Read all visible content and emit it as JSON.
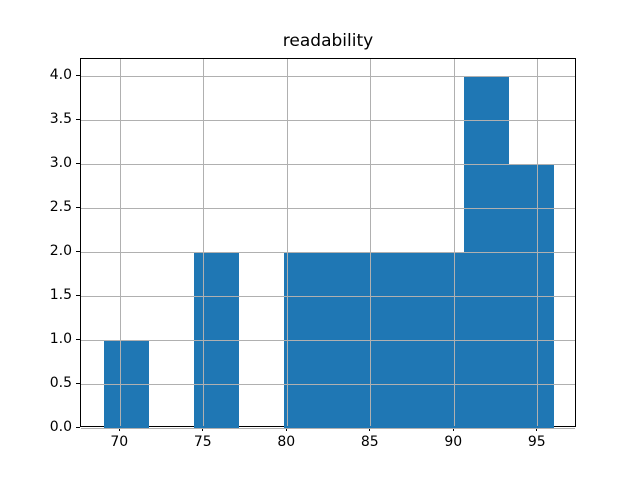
{
  "chart_data": {
    "type": "bar",
    "subtype": "histogram",
    "title": "readability",
    "xlabel": "",
    "ylabel": "",
    "xlim": [
      67.65,
      97.35
    ],
    "ylim": [
      0,
      4.2
    ],
    "xticks": [
      {
        "value": 70,
        "label": "70"
      },
      {
        "value": 75,
        "label": "75"
      },
      {
        "value": 80,
        "label": "80"
      },
      {
        "value": 85,
        "label": "85"
      },
      {
        "value": 90,
        "label": "90"
      },
      {
        "value": 95,
        "label": "95"
      }
    ],
    "yticks": [
      {
        "value": 0.0,
        "label": "0.0"
      },
      {
        "value": 0.5,
        "label": "0.5"
      },
      {
        "value": 1.0,
        "label": "1.0"
      },
      {
        "value": 1.5,
        "label": "1.5"
      },
      {
        "value": 2.0,
        "label": "2.0"
      },
      {
        "value": 2.5,
        "label": "2.5"
      },
      {
        "value": 3.0,
        "label": "3.0"
      },
      {
        "value": 3.5,
        "label": "3.5"
      },
      {
        "value": 4.0,
        "label": "4.0"
      }
    ],
    "bin_edges": [
      69.0,
      71.7,
      74.4,
      77.1,
      79.8,
      82.5,
      85.2,
      87.9,
      90.6,
      93.3,
      96.0
    ],
    "counts": [
      1,
      0,
      2,
      0,
      2,
      2,
      2,
      2,
      4,
      3
    ],
    "grid": true,
    "grid_above_bars": true,
    "legend": null,
    "colors": {
      "bar": "#1f77b4",
      "grid": "#b0b0b0",
      "spine": "#000000",
      "text": "#000000",
      "background": "#ffffff"
    }
  }
}
